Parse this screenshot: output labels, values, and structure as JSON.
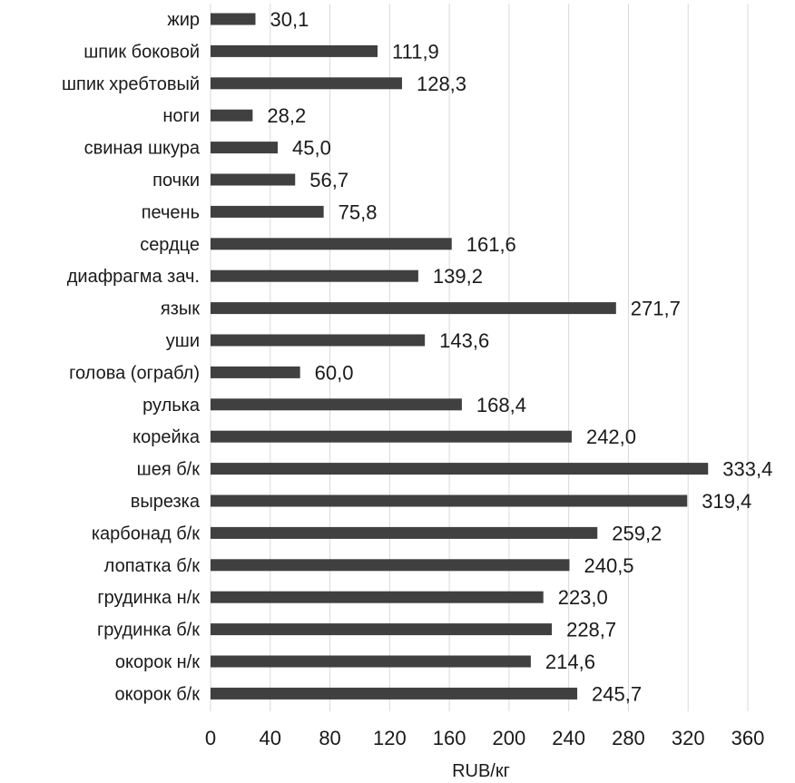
{
  "chart_data": {
    "type": "bar",
    "orientation": "horizontal",
    "categories": [
      "жир",
      "шпик боковой",
      "шпик хребтовый",
      "ноги",
      "свиная шкура",
      "почки",
      "печень",
      "сердце",
      "диафрагма зач.",
      "язык",
      "уши",
      "голова (ограбл)",
      "рулька",
      "корейка",
      "шея б/к",
      "вырезка",
      "карбонад б/к",
      "лопатка б/к",
      "грудинка н/к",
      "грудинка б/к",
      "окорок н/к",
      "окорок б/к"
    ],
    "values": [
      30.1,
      111.9,
      128.3,
      28.2,
      45.0,
      56.7,
      75.8,
      161.6,
      139.2,
      271.7,
      143.6,
      60.0,
      168.4,
      242.0,
      333.4,
      319.4,
      259.2,
      240.5,
      223.0,
      228.7,
      214.6,
      245.7
    ],
    "value_labels": [
      "30,1",
      "111,9",
      "128,3",
      "28,2",
      "45,0",
      "56,7",
      "75,8",
      "161,6",
      "139,2",
      "271,7",
      "143,6",
      "60,0",
      "168,4",
      "242,0",
      "333,4",
      "319,4",
      "259,2",
      "240,5",
      "223,0",
      "228,7",
      "214,6",
      "245,7"
    ],
    "xlabel": "RUB/кг",
    "ylabel": "",
    "xlim": [
      0,
      360
    ],
    "xticks": [
      0,
      40,
      80,
      120,
      160,
      200,
      240,
      280,
      320,
      360
    ],
    "grid": true,
    "legend": "none",
    "bar_color": "#404040",
    "grid_color": "#d9d9d9",
    "text_color": "#1a1a1a"
  }
}
